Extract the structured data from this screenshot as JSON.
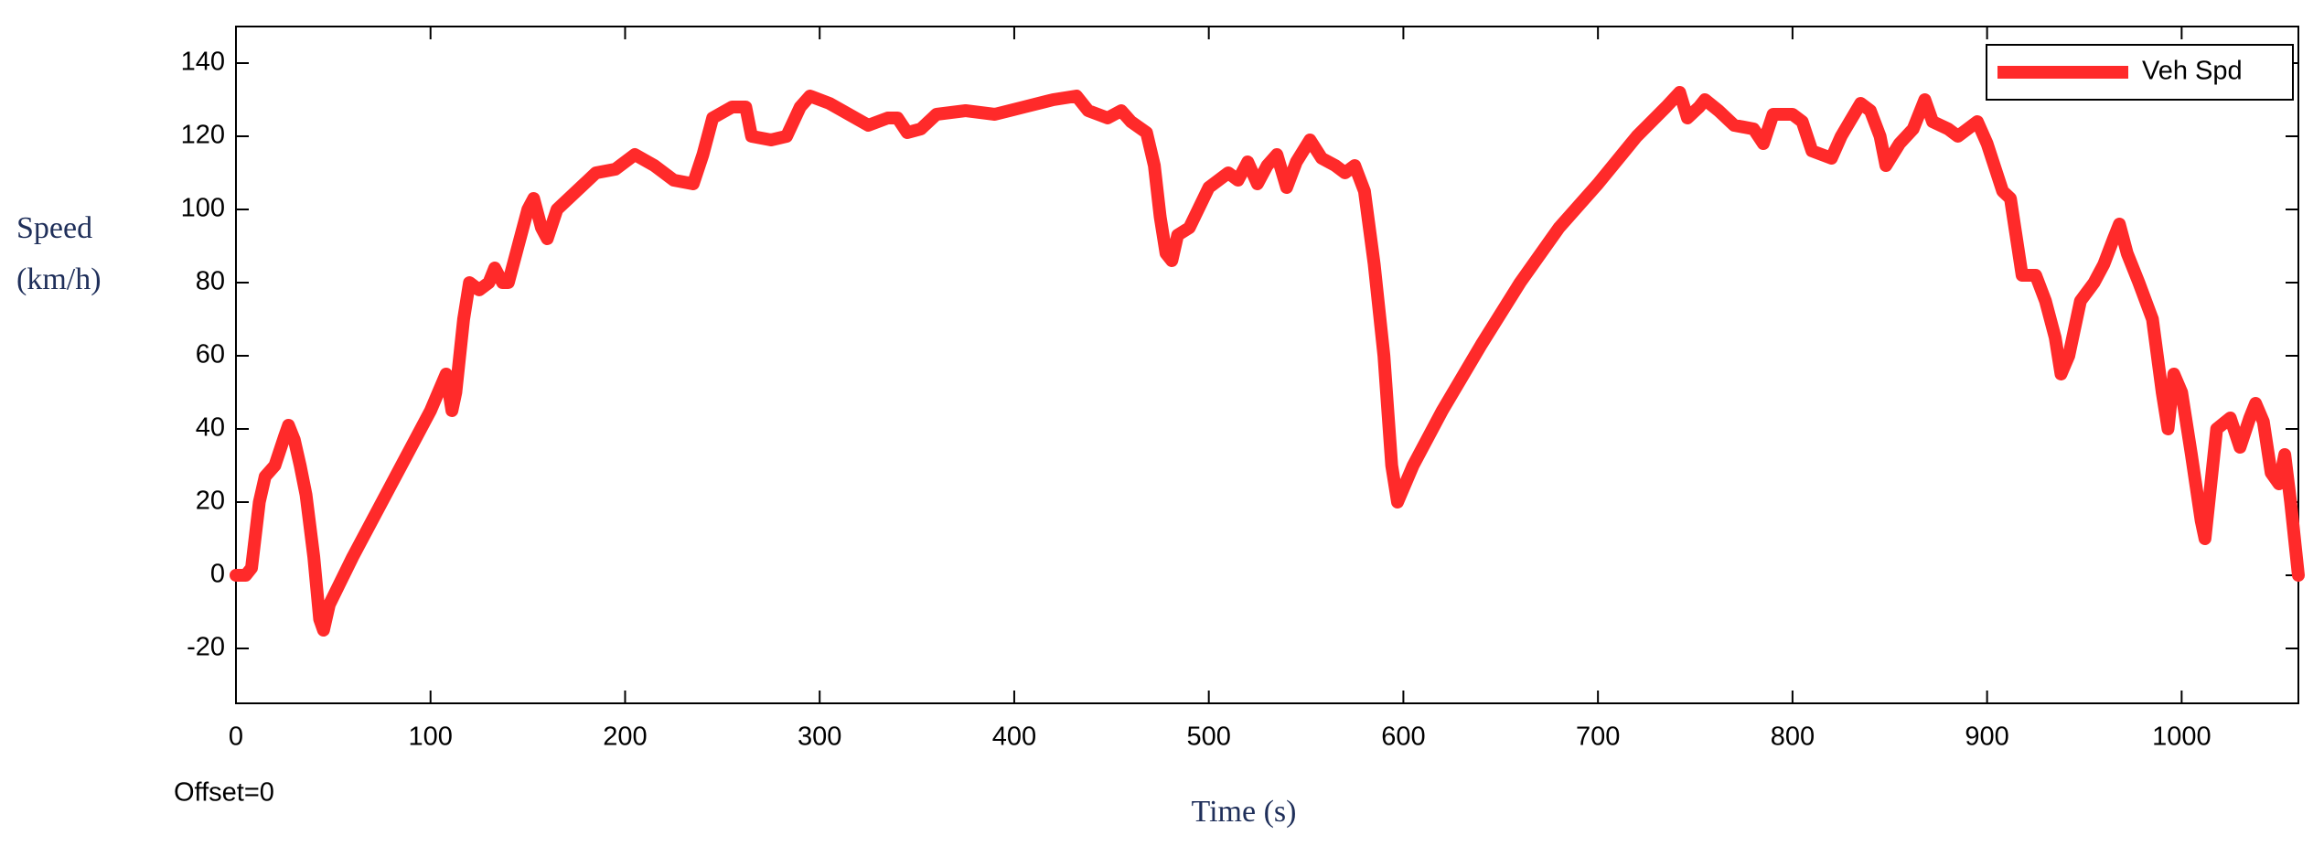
{
  "chart_data": {
    "type": "line",
    "y_label": [
      "Speed",
      "(km/h)"
    ],
    "x_label": "Time (s)",
    "annotation": "Offset=0",
    "xlim": [
      0,
      1060
    ],
    "ylim": [
      -35,
      150
    ],
    "xticks": [
      0,
      100,
      200,
      300,
      400,
      500,
      600,
      700,
      800,
      900,
      1000
    ],
    "yticks": [
      -20,
      0,
      20,
      40,
      60,
      80,
      100,
      120,
      140
    ],
    "grid": false,
    "legend": "upper right",
    "x": [
      0,
      5,
      8,
      12,
      15,
      20,
      25,
      27,
      30,
      33,
      36,
      40,
      43,
      45,
      48,
      60,
      80,
      100,
      108,
      111,
      113,
      117,
      120,
      125,
      130,
      133,
      137,
      140,
      145,
      150,
      153,
      157,
      160,
      165,
      175,
      185,
      195,
      205,
      215,
      225,
      235,
      240,
      245,
      255,
      262,
      265,
      275,
      283,
      290,
      295,
      305,
      315,
      325,
      335,
      340,
      345,
      352,
      360,
      375,
      390,
      405,
      420,
      432,
      438,
      448,
      455,
      460,
      468,
      472,
      475,
      478,
      481,
      484,
      490,
      500,
      510,
      515,
      520,
      525,
      530,
      535,
      540,
      545,
      552,
      558,
      565,
      570,
      575,
      580,
      585,
      590,
      594,
      597,
      605,
      620,
      640,
      660,
      680,
      700,
      720,
      735,
      742,
      746,
      752,
      755,
      762,
      770,
      780,
      785,
      790,
      800,
      805,
      810,
      820,
      825,
      835,
      840,
      845,
      848,
      855,
      862,
      868,
      872,
      880,
      885,
      895,
      900,
      908,
      912,
      918,
      925,
      930,
      935,
      938,
      942,
      948,
      955,
      960,
      965,
      968,
      972,
      978,
      985,
      990,
      993,
      996,
      1000,
      1005,
      1010,
      1012,
      1015,
      1018,
      1025,
      1030,
      1035,
      1038,
      1042,
      1046,
      1050,
      1053,
      1056,
      1060
    ],
    "series": [
      {
        "name": "Veh Spd",
        "color": "#ff2a2a",
        "values": [
          0,
          0,
          2,
          20,
          27,
          30,
          38,
          41,
          37,
          30,
          22,
          5,
          -12,
          -15,
          -8,
          5,
          25,
          45,
          55,
          45,
          50,
          70,
          80,
          78,
          80,
          84,
          80,
          80,
          90,
          100,
          103,
          95,
          92,
          100,
          105,
          110,
          111,
          115,
          112,
          108,
          107,
          115,
          125,
          128,
          128,
          120,
          119,
          120,
          128,
          131,
          129,
          126,
          123,
          125,
          125,
          121,
          122,
          126,
          127,
          126,
          128,
          130,
          131,
          127,
          125,
          127,
          124,
          121,
          112,
          98,
          88,
          86,
          93,
          95,
          106,
          110,
          108,
          113,
          107,
          112,
          115,
          106,
          113,
          119,
          114,
          112,
          110,
          112,
          105,
          85,
          60,
          30,
          20,
          30,
          45,
          63,
          80,
          95,
          107,
          120,
          128,
          132,
          125,
          128,
          130,
          127,
          123,
          122,
          118,
          126,
          126,
          124,
          116,
          114,
          120,
          129,
          127,
          120,
          112,
          118,
          122,
          130,
          124,
          122,
          120,
          124,
          118,
          105,
          103,
          82,
          82,
          75,
          65,
          55,
          60,
          75,
          80,
          85,
          92,
          96,
          88,
          80,
          70,
          50,
          40,
          55,
          50,
          33,
          15,
          10,
          25,
          40,
          43,
          35,
          43,
          47,
          42,
          28,
          25,
          33,
          20,
          0
        ]
      }
    ]
  }
}
